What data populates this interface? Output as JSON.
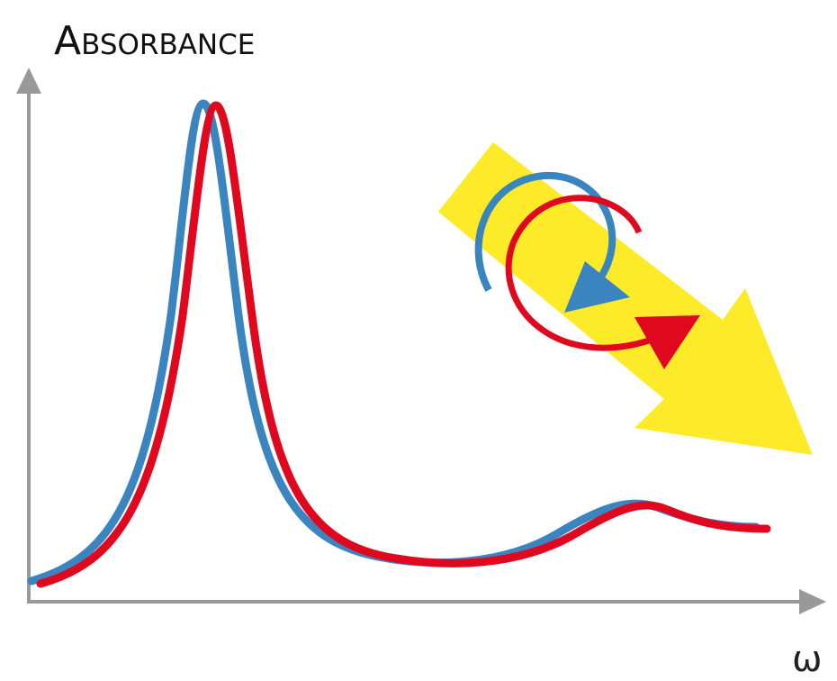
{
  "title": "Absorbance",
  "x_label": "ω"
}
